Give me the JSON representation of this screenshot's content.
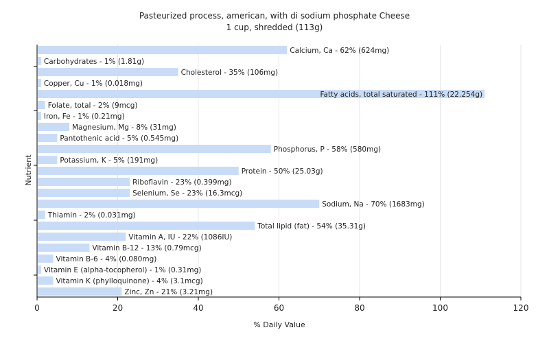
{
  "chart_data": {
    "type": "bar",
    "orientation": "horizontal",
    "title": "Pasteurized process, american, with di sodium phosphate Cheese",
    "subtitle": "1 cup, shredded (113g)",
    "xlabel": "% Daily Value",
    "ylabel": "Nutrient",
    "xlim": [
      0,
      120
    ],
    "xticks": [
      0,
      20,
      40,
      60,
      80,
      100,
      120
    ],
    "grid": true,
    "bar_color": "#c9dcf7",
    "categories": [
      "Calcium, Ca",
      "Carbohydrates",
      "Cholesterol",
      "Copper, Cu",
      "Fatty acids, total saturated",
      "Folate, total",
      "Iron, Fe",
      "Magnesium, Mg",
      "Pantothenic acid",
      "Phosphorus, P",
      "Potassium, K",
      "Protein",
      "Riboflavin",
      "Selenium, Se",
      "Sodium, Na",
      "Thiamin",
      "Total lipid (fat)",
      "Vitamin A, IU",
      "Vitamin B-12",
      "Vitamin B-6",
      "Vitamin E (alpha-tocopherol)",
      "Vitamin K (phylloquinone)",
      "Zinc, Zn"
    ],
    "values": [
      62,
      1,
      35,
      1,
      111,
      2,
      1,
      8,
      5,
      58,
      5,
      50,
      23,
      23,
      70,
      2,
      54,
      22,
      13,
      4,
      1,
      4,
      21
    ],
    "labels": [
      "Calcium, Ca - 62% (624mg)",
      "Carbohydrates - 1% (1.81g)",
      "Cholesterol - 35% (106mg)",
      "Copper, Cu - 1% (0.018mg)",
      "Fatty acids, total saturated - 111% (22.254g)",
      "Folate, total - 2% (9mcg)",
      "Iron, Fe - 1% (0.21mg)",
      "Magnesium, Mg - 8% (31mg)",
      "Pantothenic acid - 5% (0.545mg)",
      "Phosphorus, P - 58% (580mg)",
      "Potassium, K - 5% (191mg)",
      "Protein - 50% (25.03g)",
      "Riboflavin - 23% (0.399mg)",
      "Selenium, Se - 23% (16.3mcg)",
      "Sodium, Na - 70% (1683mg)",
      "Thiamin - 2% (0.031mg)",
      "Total lipid (fat) - 54% (35.31g)",
      "Vitamin A, IU - 22% (1086IU)",
      "Vitamin B-12 - 13% (0.79mcg)",
      "Vitamin B-6 - 4% (0.080mg)",
      "Vitamin E (alpha-tocopherol) - 1% (0.31mg)",
      "Vitamin K (phylloquinone) - 4% (3.1mcg)",
      "Zinc, Zn - 21% (3.21mg)"
    ]
  }
}
